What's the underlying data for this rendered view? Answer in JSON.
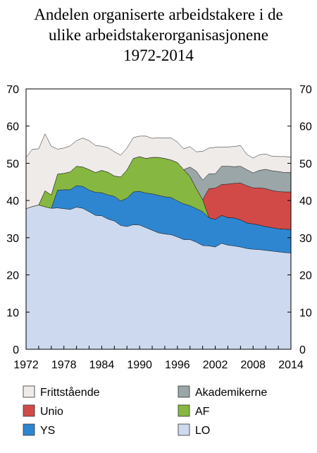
{
  "chart_data": {
    "type": "area",
    "stacked": true,
    "title_lines": [
      "Andelen organiserte arbeidstakere i de",
      "ulike arbeidstakerorganisasjonene",
      "1972-2014"
    ],
    "x": [
      1972,
      1973,
      1974,
      1975,
      1976,
      1977,
      1978,
      1979,
      1980,
      1981,
      1982,
      1983,
      1984,
      1985,
      1986,
      1987,
      1988,
      1989,
      1990,
      1991,
      1992,
      1993,
      1994,
      1995,
      1996,
      1997,
      1998,
      1999,
      2000,
      2001,
      2002,
      2003,
      2004,
      2005,
      2006,
      2007,
      2008,
      2009,
      2010,
      2011,
      2012,
      2013,
      2014
    ],
    "x_ticks": [
      "1972",
      "1978",
      "1984",
      "1990",
      "1996",
      "2002",
      "2008",
      "2014"
    ],
    "y_ticks": [
      "0",
      "10",
      "20",
      "30",
      "40",
      "50",
      "60",
      "70"
    ],
    "ylim": [
      0,
      70
    ],
    "xlim": [
      1972,
      2014
    ],
    "grid": false,
    "legend_position": "bottom",
    "series": [
      {
        "name": "LO",
        "color": "#ccd9ee",
        "values": [
          37.8,
          38.4,
          38.8,
          38.3,
          37.9,
          38.0,
          37.8,
          37.6,
          38.2,
          37.9,
          37.0,
          36.0,
          35.9,
          35.0,
          34.5,
          33.3,
          33.0,
          33.5,
          33.4,
          32.7,
          32.0,
          31.3,
          31.0,
          30.8,
          30.2,
          29.5,
          29.5,
          28.8,
          27.9,
          27.8,
          27.5,
          28.5,
          28.0,
          27.8,
          27.5,
          27.1,
          26.9,
          26.8,
          26.6,
          26.4,
          26.2,
          26.0,
          25.9
        ]
      },
      {
        "name": "YS",
        "color": "#2f86d0",
        "values": [
          0,
          0,
          0,
          0,
          0,
          4.8,
          5.1,
          5.3,
          5.8,
          5.9,
          5.8,
          6.2,
          6.2,
          6.5,
          6.6,
          6.6,
          7.6,
          8.8,
          9.1,
          9.3,
          9.8,
          10.1,
          10.0,
          10.0,
          9.7,
          9.6,
          9.1,
          9.0,
          9.1,
          7.6,
          7.4,
          7.5,
          7.4,
          7.5,
          7.3,
          6.9,
          6.8,
          6.6,
          6.4,
          6.3,
          6.2,
          6.3,
          6.3
        ]
      },
      {
        "name": "AF",
        "color": "#86b841",
        "values": [
          0,
          0,
          0,
          4.3,
          3.6,
          4.3,
          4.4,
          4.8,
          5.2,
          5.2,
          5.5,
          5.3,
          6.0,
          6.1,
          5.5,
          6.4,
          7.6,
          9.0,
          9.3,
          9.3,
          9.8,
          10.2,
          10.3,
          10.1,
          10.3,
          9.2,
          7.8,
          5.4,
          3.2,
          0,
          0,
          0,
          0,
          0,
          0,
          0,
          0,
          0,
          0,
          0,
          0,
          0,
          0
        ]
      },
      {
        "name": "Unio",
        "color": "#d24a47",
        "values": [
          0,
          0,
          0,
          0,
          0,
          0,
          0,
          0,
          0,
          0,
          0,
          0,
          0,
          0,
          0,
          0,
          0,
          0,
          0,
          0,
          0,
          0,
          0,
          0,
          0,
          0,
          0,
          0,
          0,
          7.8,
          8.4,
          8.3,
          9.0,
          9.3,
          9.9,
          10.0,
          9.7,
          10.0,
          10.2,
          10.0,
          10.0,
          10.0,
          10.1
        ]
      },
      {
        "name": "Akademikerne",
        "color": "#9aa6a7",
        "values": [
          0,
          0,
          0,
          0,
          0,
          0,
          0,
          0,
          0,
          0,
          0,
          0,
          0,
          0,
          0,
          0,
          0,
          0,
          0,
          0,
          0,
          0,
          0,
          0,
          0,
          0,
          2.6,
          4.7,
          5.3,
          4.0,
          3.9,
          4.9,
          4.8,
          4.5,
          4.5,
          4.3,
          4.0,
          4.7,
          5.2,
          5.3,
          5.4,
          5.2,
          5.3
        ]
      },
      {
        "name": "Frittstående",
        "color": "#efebe9",
        "values": [
          13.8,
          15.4,
          15.1,
          15.3,
          13.1,
          6.7,
          6.8,
          7.0,
          6.9,
          7.8,
          7.8,
          7.3,
          6.5,
          6.6,
          6.5,
          5.9,
          5.9,
          5.6,
          5.5,
          6.0,
          5.1,
          5.3,
          5.5,
          5.9,
          5.5,
          5.6,
          5.5,
          5.2,
          7.7,
          6.9,
          7.1,
          5.2,
          5.2,
          5.4,
          5.6,
          4.1,
          4.0,
          4.2,
          4.1,
          3.9,
          4.0,
          4.3,
          4.1
        ]
      }
    ],
    "legend_order": [
      "Frittstående",
      "Akademikerne",
      "Unio",
      "AF",
      "YS",
      "LO"
    ]
  }
}
